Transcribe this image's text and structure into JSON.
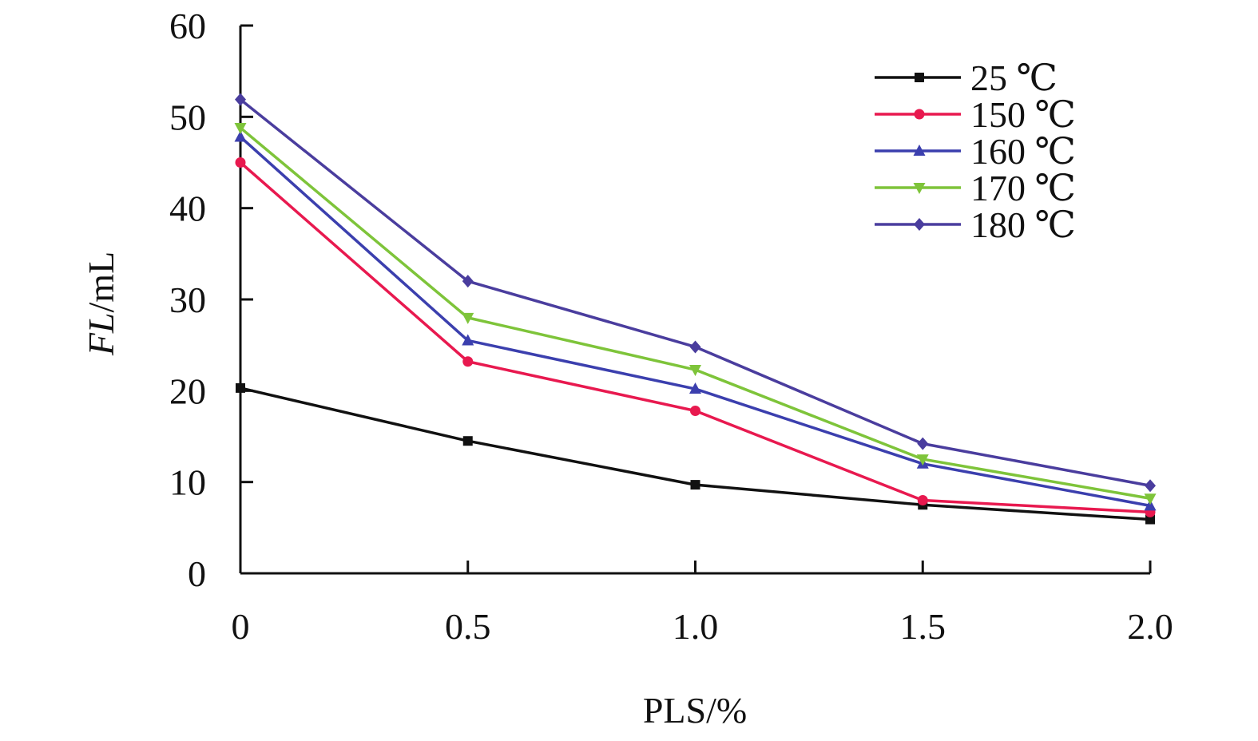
{
  "chart_data": {
    "type": "line",
    "xlabel": "PLS/%",
    "ylabel": {
      "italic": "FL",
      "rest": "/mL"
    },
    "x": [
      0,
      0.5,
      1.0,
      1.5,
      2.0
    ],
    "x_tick_labels": [
      "0",
      "0.5",
      "1.0",
      "1.5",
      "2.0"
    ],
    "xlim": [
      0,
      2.0
    ],
    "ylim": [
      0,
      60
    ],
    "y_ticks": [
      0,
      10,
      20,
      30,
      40,
      50,
      60
    ],
    "y_tick_labels": [
      "0",
      "10",
      "20",
      "30",
      "40",
      "50",
      "60"
    ],
    "grid": false,
    "legend_position": "top-right",
    "series": [
      {
        "name": "25 ℃",
        "color": "#111111",
        "marker": "square",
        "values": [
          20.3,
          14.5,
          9.7,
          7.5,
          5.9
        ]
      },
      {
        "name": "150 ℃",
        "color": "#e8194f",
        "marker": "circle",
        "values": [
          45.0,
          23.2,
          17.8,
          8.0,
          6.7
        ]
      },
      {
        "name": "160 ℃",
        "color": "#3b3fae",
        "marker": "triangle-up",
        "values": [
          47.8,
          25.5,
          20.2,
          12.0,
          7.4
        ]
      },
      {
        "name": "170 ℃",
        "color": "#7ec43a",
        "marker": "triangle-down",
        "values": [
          48.8,
          28.0,
          22.3,
          12.5,
          8.2
        ]
      },
      {
        "name": "180 ℃",
        "color": "#4a3d9e",
        "marker": "diamond",
        "values": [
          51.9,
          32.0,
          24.8,
          14.2,
          9.6
        ]
      }
    ]
  }
}
